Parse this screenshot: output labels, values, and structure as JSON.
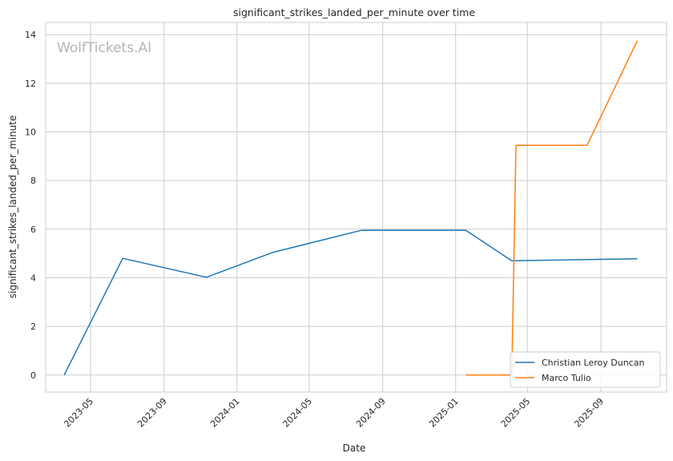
{
  "watermark": "WolfTickets.AI",
  "chart_data": {
    "type": "line",
    "title": "significant_strikes_landed_per_minute over time",
    "xlabel": "Date",
    "ylabel": "significant_strikes_landed_per_minute",
    "xlim": [
      "2023-02-15",
      "2025-12-20"
    ],
    "ylim": [
      -0.7,
      14.5
    ],
    "x_ticks": [
      "2023-05",
      "2023-09",
      "2024-01",
      "2024-05",
      "2024-09",
      "2025-01",
      "2025-05",
      "2025-09"
    ],
    "y_ticks": [
      0,
      2,
      4,
      6,
      8,
      10,
      12,
      14
    ],
    "grid": true,
    "legend_position": "lower-right",
    "series": [
      {
        "name": "Christian Leroy Duncan",
        "color": "#1f77b4",
        "x": [
          "2023-03-18",
          "2023-06-24",
          "2023-11-11",
          "2024-03-02",
          "2024-07-27",
          "2025-01-18",
          "2025-04-05",
          "2025-11-01"
        ],
        "y": [
          0,
          4.8,
          4.02,
          5.05,
          5.95,
          5.95,
          4.7,
          4.78
        ]
      },
      {
        "name": "Marco Tulio",
        "color": "#ff7f0e",
        "x": [
          "2025-01-18",
          "2025-04-05",
          "2025-04-12",
          "2025-08-09",
          "2025-11-01"
        ],
        "y": [
          0,
          0,
          9.45,
          9.45,
          13.75
        ]
      }
    ]
  }
}
